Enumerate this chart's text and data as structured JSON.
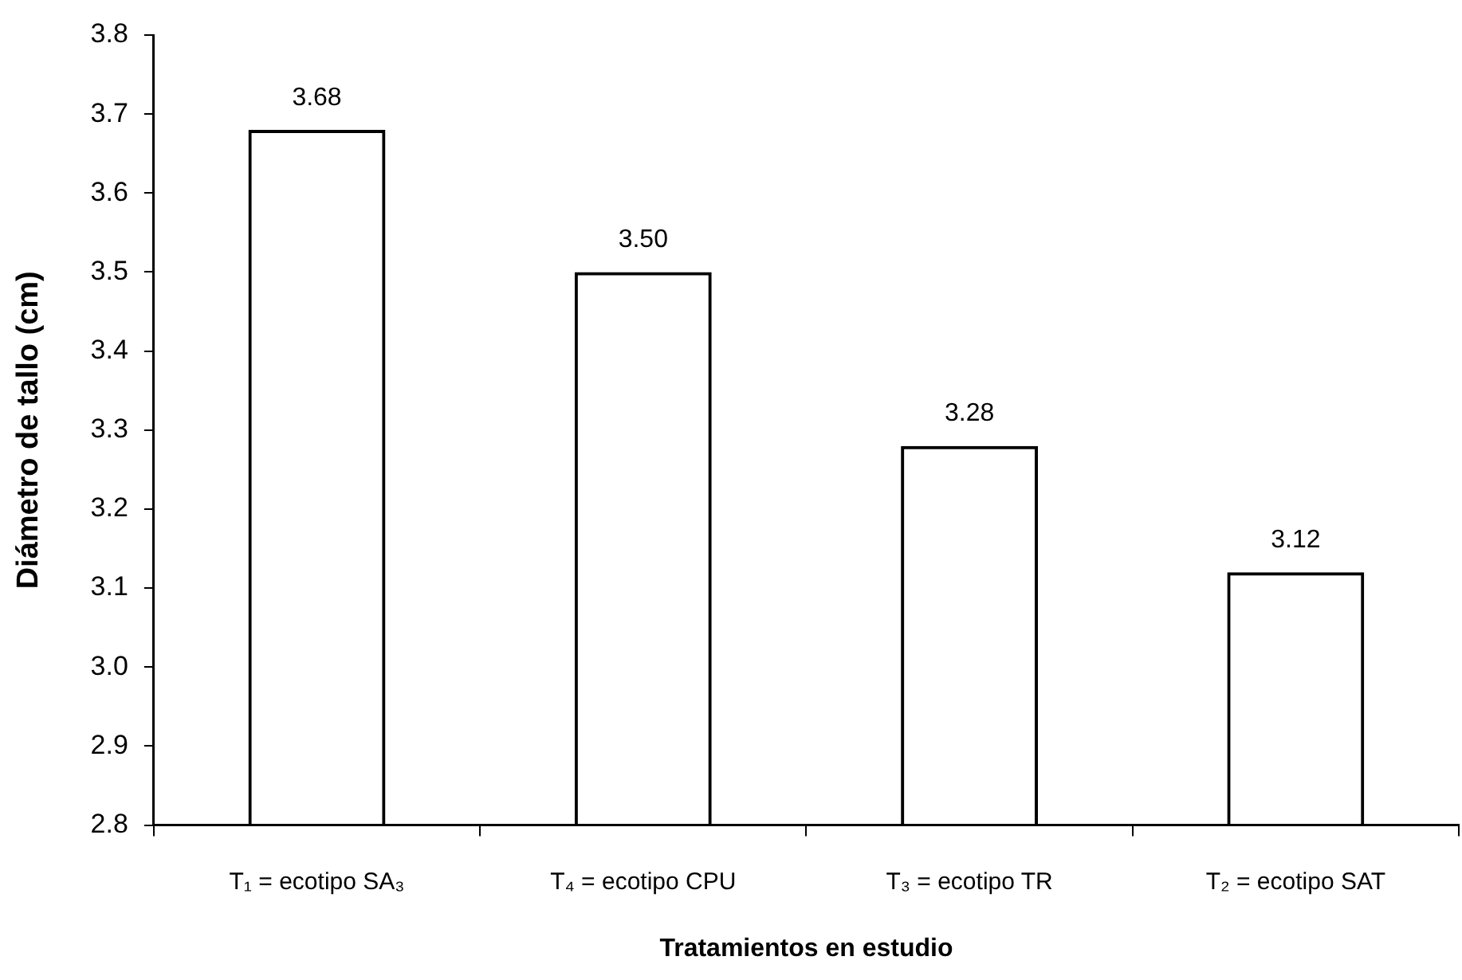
{
  "chart_data": {
    "type": "bar",
    "xlabel": "Tratamientos en estudio",
    "ylabel": "Diámetro de tallo (cm)",
    "categories": [
      "T₁ = ecotipo SA₃",
      "T₄ = ecotipo CPU",
      "T₃ = ecotipo TR",
      "T₂ = ecotipo SAT"
    ],
    "values": [
      3.68,
      3.5,
      3.28,
      3.12
    ],
    "color": "#000000",
    "value_labels": [
      "3.68",
      "3.50",
      "3.28",
      "3.12"
    ],
    "ylim": [
      2.8,
      3.8
    ],
    "yticks": [
      2.8,
      2.9,
      {
        "value": 3,
        "label": "3.0"
      },
      3.1,
      3.2,
      3.3,
      3.4,
      3.5,
      3.6,
      3.7,
      3.8
    ]
  }
}
